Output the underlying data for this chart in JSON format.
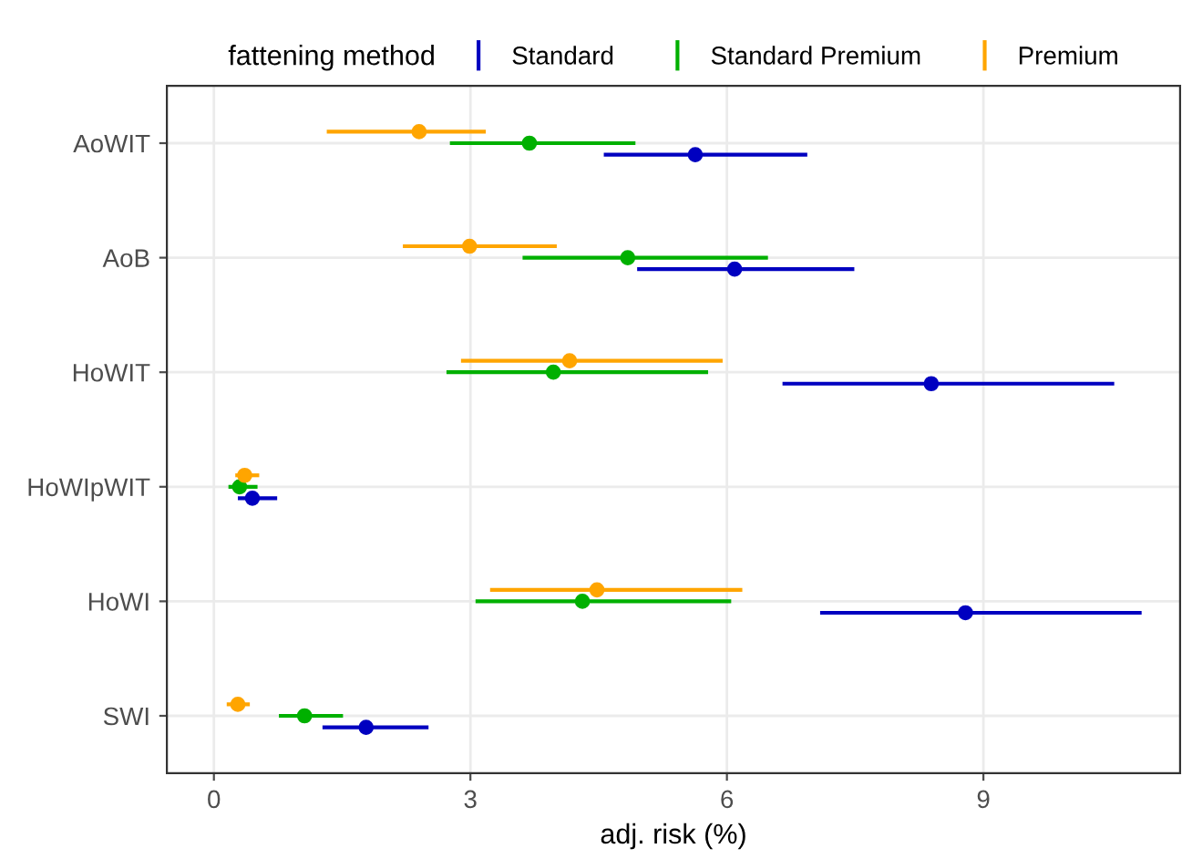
{
  "chart_data": {
    "type": "scatter",
    "orientation": "horizontal",
    "xlabel": "adj. risk (%)",
    "legend_title": "fattening method",
    "legend": "top",
    "grid": true,
    "marker": "circle",
    "categories": [
      "AoWIT",
      "AoB",
      "HoWIT",
      "HoWIpWIT",
      "HoWI",
      "SWI"
    ],
    "xlim": [
      -0.55,
      11.3
    ],
    "xticks": [
      0,
      3,
      6,
      9
    ],
    "series": [
      {
        "name": "Standard",
        "color": "#0000c0",
        "values": [
          5.63,
          6.09,
          8.39,
          0.45,
          8.79,
          1.78
        ],
        "errors": [
          [
            4.56,
            6.94
          ],
          [
            4.95,
            7.49
          ],
          [
            6.65,
            10.53
          ],
          [
            0.28,
            0.74
          ],
          [
            7.09,
            10.85
          ],
          [
            1.27,
            2.51
          ]
        ]
      },
      {
        "name": "Standard Premium",
        "color": "#00b000",
        "values": [
          3.69,
          4.84,
          3.97,
          0.3,
          4.31,
          1.06
        ],
        "errors": [
          [
            2.76,
            4.93
          ],
          [
            3.61,
            6.48
          ],
          [
            2.72,
            5.78
          ],
          [
            0.17,
            0.51
          ],
          [
            3.06,
            6.05
          ],
          [
            0.76,
            1.51
          ]
        ]
      },
      {
        "name": "Premium",
        "color": "#ffa500",
        "values": [
          2.4,
          2.99,
          4.16,
          0.36,
          4.48,
          0.28
        ],
        "errors": [
          [
            1.32,
            3.18
          ],
          [
            2.21,
            4.01
          ],
          [
            2.89,
            5.95
          ],
          [
            0.25,
            0.53
          ],
          [
            3.23,
            6.18
          ],
          [
            0.15,
            0.42
          ]
        ]
      }
    ]
  }
}
